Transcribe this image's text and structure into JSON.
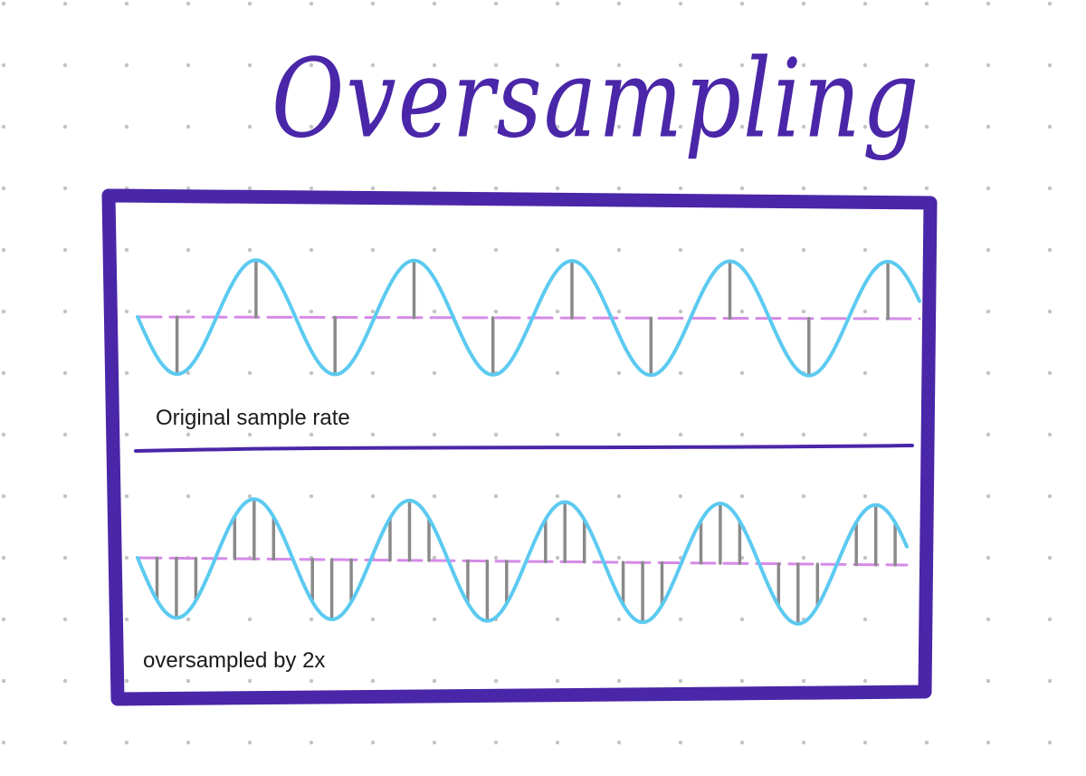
{
  "title": "Oversampling",
  "panels": [
    {
      "id": "top",
      "label": "Original sample rate",
      "samples_per_cycle": 4
    },
    {
      "id": "bottom",
      "label": "oversampled by 2x",
      "samples_per_cycle": 8
    }
  ],
  "colors": {
    "ink": "#4a26a8",
    "wave": "#5ccaf0",
    "baseline": "#d68be8",
    "sample_stems": "#8a8a8a",
    "grid_dots": "#c4c4c4"
  }
}
